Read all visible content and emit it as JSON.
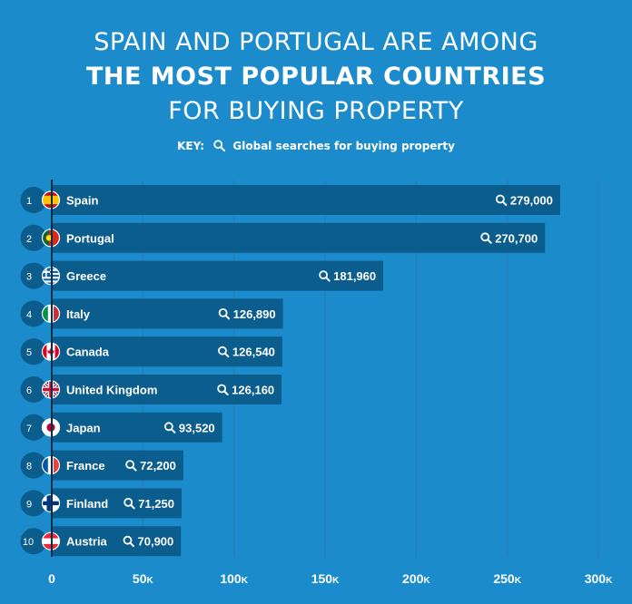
{
  "title": {
    "line1": "SPAIN AND PORTUGAL ARE AMONG",
    "line2": "THE MOST POPULAR COUNTRIES",
    "line3": "FOR BUYING PROPERTY"
  },
  "key": {
    "label": "KEY:",
    "text": "Global searches for buying property",
    "icon": "search-icon"
  },
  "colors": {
    "background": "#1b8bcb",
    "bar": "#0b5d8e",
    "rank_circle": "#0b5d8e",
    "gridline": "#2f79b0",
    "axis": "#0a2f4a",
    "text": "#ffffff"
  },
  "chart_data": {
    "type": "bar",
    "orientation": "horizontal",
    "categories": [
      "Spain",
      "Portugal",
      "Greece",
      "Italy",
      "Canada",
      "United Kingdom",
      "Japan",
      "France",
      "Finland",
      "Austria"
    ],
    "ranks": [
      "1",
      "2",
      "3",
      "4",
      "5",
      "6",
      "7",
      "8",
      "9",
      "10"
    ],
    "values": [
      279000,
      270700,
      181960,
      126890,
      126540,
      126160,
      93520,
      72200,
      71250,
      70900
    ],
    "value_labels": [
      "279,000",
      "270,700",
      "181,960",
      "126,890",
      "126,540",
      "126,160",
      "93,520",
      "72,200",
      "71,250",
      "70,900"
    ],
    "flags": [
      "spain-flag",
      "portugal-flag",
      "greece-flag",
      "italy-flag",
      "canada-flag",
      "uk-flag",
      "japan-flag",
      "france-flag",
      "finland-flag",
      "austria-flag"
    ],
    "xlim": [
      0,
      300000
    ],
    "xticks": [
      0,
      50000,
      100000,
      150000,
      200000,
      250000,
      300000
    ],
    "xtick_labels": [
      {
        "num": "0",
        "unit": ""
      },
      {
        "num": "50",
        "unit": "K"
      },
      {
        "num": "100",
        "unit": "K"
      },
      {
        "num": "150",
        "unit": "K"
      },
      {
        "num": "200",
        "unit": "K"
      },
      {
        "num": "250",
        "unit": "K"
      },
      {
        "num": "300",
        "unit": "K"
      }
    ],
    "grid": true,
    "xlabel": "",
    "ylabel": ""
  }
}
